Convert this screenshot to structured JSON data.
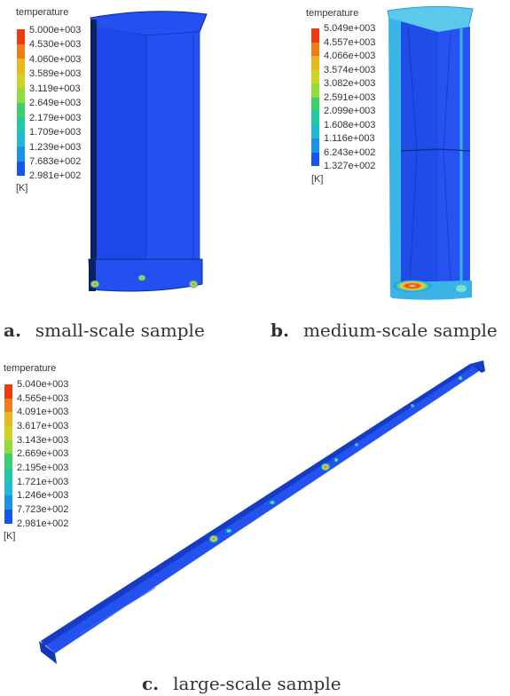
{
  "panels": [
    {
      "id": "a",
      "letter": "a.",
      "caption": "small-scale sample",
      "legend": {
        "title": "temperature",
        "unit": "[K]",
        "ticks": [
          "5.000e+003",
          "4.530e+003",
          "4.060e+003",
          "3.589e+003",
          "3.119e+003",
          "2.649e+003",
          "2.179e+003",
          "1.709e+003",
          "1.239e+003",
          "7.683e+002",
          "2.981e+002"
        ]
      }
    },
    {
      "id": "b",
      "letter": "b.",
      "caption": "medium-scale sample",
      "legend": {
        "title": "temperature",
        "unit": "[K]",
        "ticks": [
          "5.049e+003",
          "4.557e+003",
          "4.066e+003",
          "3.574e+003",
          "3.082e+003",
          "2.591e+003",
          "2.099e+003",
          "1.608e+003",
          "1.116e+003",
          "6.243e+002",
          "1.327e+002"
        ]
      }
    },
    {
      "id": "c",
      "letter": "c.",
      "caption": "large-scale sample",
      "legend": {
        "title": "temperature",
        "unit": "[K]",
        "ticks": [
          "5.040e+003",
          "4.565e+003",
          "4.091e+003",
          "3.617e+003",
          "3.143e+003",
          "2.669e+003",
          "2.195e+003",
          "1.721e+003",
          "1.246e+003",
          "7.723e+002",
          "2.981e+002"
        ]
      }
    }
  ],
  "colormap": [
    "#ee3a12",
    "#ee7d1a",
    "#e8b81e",
    "#cfd424",
    "#8fdc3a",
    "#3ccf6a",
    "#22c9a7",
    "#20b9d6",
    "#1a92e6",
    "#1656ef",
    "#1a33e8"
  ]
}
